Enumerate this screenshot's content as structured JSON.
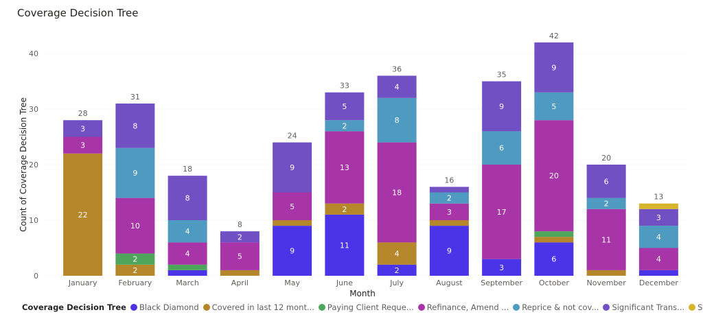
{
  "title": "Coverage Decision Tree",
  "chart_data": {
    "type": "bar",
    "stacked": true,
    "title": "Coverage Decision Tree",
    "xlabel": "Month",
    "ylabel": "Count of Coverage Decision Tree",
    "ylim": [
      0,
      45
    ],
    "yticks": [
      0,
      10,
      20,
      30,
      40
    ],
    "grid": true,
    "legend_position": "bottom",
    "legend_title": "Coverage Decision Tree",
    "categories": [
      "January",
      "February",
      "March",
      "April",
      "May",
      "June",
      "July",
      "August",
      "September",
      "October",
      "November",
      "December"
    ],
    "totals": [
      28,
      31,
      18,
      8,
      24,
      33,
      36,
      16,
      35,
      42,
      20,
      13
    ],
    "series": [
      {
        "name": "Black Diamond",
        "color": "#4B33E8",
        "values": [
          0,
          0,
          1,
          0,
          9,
          11,
          2,
          9,
          3,
          6,
          0,
          1
        ]
      },
      {
        "name": "Covered in last 12 mont...",
        "color": "#B5862A",
        "values": [
          22,
          2,
          0,
          1,
          1,
          2,
          4,
          1,
          0,
          1,
          1,
          0
        ]
      },
      {
        "name": "Paying Client Reque...",
        "color": "#4EA55C",
        "values": [
          0,
          2,
          1,
          0,
          0,
          0,
          0,
          0,
          0,
          1,
          0,
          0
        ]
      },
      {
        "name": "Refinance, Amend ...",
        "color": "#A835A8",
        "values": [
          3,
          10,
          4,
          5,
          5,
          13,
          18,
          3,
          17,
          20,
          11,
          4
        ]
      },
      {
        "name": "Reprice & not cov...",
        "color": "#4F9AC0",
        "values": [
          0,
          9,
          4,
          0,
          0,
          2,
          8,
          2,
          6,
          5,
          2,
          4
        ]
      },
      {
        "name": "Significant Trans...",
        "color": "#7150C4",
        "values": [
          3,
          8,
          8,
          2,
          9,
          5,
          4,
          1,
          9,
          9,
          6,
          3
        ]
      },
      {
        "name": "Significant Tra...",
        "color": "#D6B42E",
        "values": [
          0,
          0,
          0,
          0,
          0,
          0,
          0,
          0,
          0,
          0,
          0,
          1
        ]
      }
    ]
  }
}
